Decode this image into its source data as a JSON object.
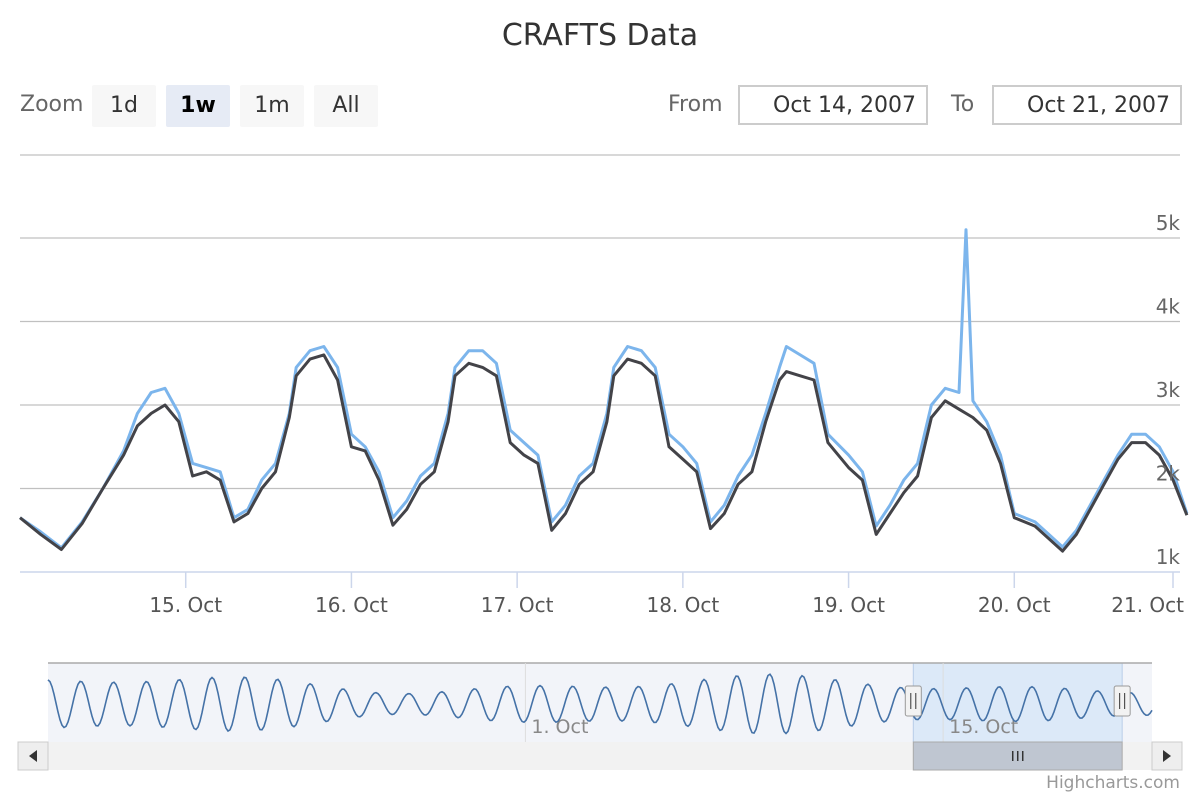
{
  "title": "CRAFTS Data",
  "range_selector": {
    "zoom_label": "Zoom",
    "buttons": [
      {
        "label": "1d",
        "active": false
      },
      {
        "label": "1w",
        "active": true
      },
      {
        "label": "1m",
        "active": false
      },
      {
        "label": "All",
        "active": false
      }
    ],
    "from_label": "From",
    "from_value": "Oct 14, 2007",
    "to_label": "To",
    "to_value": "Oct 21, 2007"
  },
  "credits": "Highcharts.com",
  "colors": {
    "series_light": "#7cb5ec",
    "series_dark": "#434348",
    "navigator_line": "#4572a7",
    "navigator_mask": "#dce9f8",
    "grid": "#c0c0c0"
  },
  "chart_data": {
    "type": "line",
    "xlim": [
      "2007-10-14",
      "2007-10-21"
    ],
    "ylim": [
      1000,
      5000
    ],
    "y_ticks": [
      {
        "value": 1000,
        "label": "1k"
      },
      {
        "value": 2000,
        "label": "2k"
      },
      {
        "value": 3000,
        "label": "3k"
      },
      {
        "value": 4000,
        "label": "4k"
      },
      {
        "value": 5000,
        "label": "5k"
      }
    ],
    "x_ticks": [
      {
        "value": "2007-10-15",
        "label": "15. Oct"
      },
      {
        "value": "2007-10-16",
        "label": "16. Oct"
      },
      {
        "value": "2007-10-17",
        "label": "17. Oct"
      },
      {
        "value": "2007-10-18",
        "label": "18. Oct"
      },
      {
        "value": "2007-10-19",
        "label": "19. Oct"
      },
      {
        "value": "2007-10-20",
        "label": "20. Oct"
      },
      {
        "value": "2007-10-21",
        "label": "21. Oct"
      }
    ],
    "grid": true,
    "series": [
      {
        "color": "#7cb5ec",
        "points": [
          [
            "2007-10-14 00:00",
            1650
          ],
          [
            "2007-10-14 03:00",
            1480
          ],
          [
            "2007-10-14 06:00",
            1290
          ],
          [
            "2007-10-14 09:00",
            1600
          ],
          [
            "2007-10-14 12:00",
            2000
          ],
          [
            "2007-10-14 15:00",
            2450
          ],
          [
            "2007-10-14 17:00",
            2900
          ],
          [
            "2007-10-14 19:00",
            3150
          ],
          [
            "2007-10-14 21:00",
            3200
          ],
          [
            "2007-10-14 23:00",
            2900
          ],
          [
            "2007-10-15 01:00",
            2300
          ],
          [
            "2007-10-15 03:00",
            2250
          ],
          [
            "2007-10-15 05:00",
            2200
          ],
          [
            "2007-10-15 07:00",
            1650
          ],
          [
            "2007-10-15 09:00",
            1750
          ],
          [
            "2007-10-15 11:00",
            2100
          ],
          [
            "2007-10-15 13:00",
            2300
          ],
          [
            "2007-10-15 15:00",
            2900
          ],
          [
            "2007-10-15 16:00",
            3450
          ],
          [
            "2007-10-15 18:00",
            3650
          ],
          [
            "2007-10-15 20:00",
            3700
          ],
          [
            "2007-10-15 22:00",
            3450
          ],
          [
            "2007-10-16 00:00",
            2650
          ],
          [
            "2007-10-16 02:00",
            2500
          ],
          [
            "2007-10-16 04:00",
            2200
          ],
          [
            "2007-10-16 06:00",
            1650
          ],
          [
            "2007-10-16 08:00",
            1850
          ],
          [
            "2007-10-16 10:00",
            2150
          ],
          [
            "2007-10-16 12:00",
            2300
          ],
          [
            "2007-10-16 14:00",
            2900
          ],
          [
            "2007-10-16 15:00",
            3450
          ],
          [
            "2007-10-16 17:00",
            3650
          ],
          [
            "2007-10-16 19:00",
            3650
          ],
          [
            "2007-10-16 21:00",
            3500
          ],
          [
            "2007-10-16 23:00",
            2700
          ],
          [
            "2007-10-17 01:00",
            2550
          ],
          [
            "2007-10-17 03:00",
            2400
          ],
          [
            "2007-10-17 05:00",
            1600
          ],
          [
            "2007-10-17 07:00",
            1800
          ],
          [
            "2007-10-17 09:00",
            2150
          ],
          [
            "2007-10-17 11:00",
            2300
          ],
          [
            "2007-10-17 13:00",
            2900
          ],
          [
            "2007-10-17 14:00",
            3450
          ],
          [
            "2007-10-17 16:00",
            3700
          ],
          [
            "2007-10-17 18:00",
            3650
          ],
          [
            "2007-10-17 20:00",
            3450
          ],
          [
            "2007-10-17 22:00",
            2650
          ],
          [
            "2007-10-18 00:00",
            2500
          ],
          [
            "2007-10-18 02:00",
            2300
          ],
          [
            "2007-10-18 04:00",
            1600
          ],
          [
            "2007-10-18 06:00",
            1800
          ],
          [
            "2007-10-18 08:00",
            2150
          ],
          [
            "2007-10-18 10:00",
            2400
          ],
          [
            "2007-10-18 12:00",
            2900
          ],
          [
            "2007-10-18 14:00",
            3450
          ],
          [
            "2007-10-18 15:00",
            3700
          ],
          [
            "2007-10-18 17:00",
            3600
          ],
          [
            "2007-10-18 19:00",
            3500
          ],
          [
            "2007-10-18 21:00",
            2650
          ],
          [
            "2007-10-19 00:00",
            2400
          ],
          [
            "2007-10-19 02:00",
            2200
          ],
          [
            "2007-10-19 04:00",
            1550
          ],
          [
            "2007-10-19 06:00",
            1800
          ],
          [
            "2007-10-19 08:00",
            2100
          ],
          [
            "2007-10-19 10:00",
            2300
          ],
          [
            "2007-10-19 12:00",
            3000
          ],
          [
            "2007-10-19 14:00",
            3200
          ],
          [
            "2007-10-19 16:00",
            3150
          ],
          [
            "2007-10-19 17:00",
            5100
          ],
          [
            "2007-10-19 18:00",
            3050
          ],
          [
            "2007-10-19 20:00",
            2800
          ],
          [
            "2007-10-19 22:00",
            2400
          ],
          [
            "2007-10-20 00:00",
            1700
          ],
          [
            "2007-10-20 03:00",
            1600
          ],
          [
            "2007-10-20 05:00",
            1450
          ],
          [
            "2007-10-20 07:00",
            1300
          ],
          [
            "2007-10-20 09:00",
            1500
          ],
          [
            "2007-10-20 11:00",
            1800
          ],
          [
            "2007-10-20 13:00",
            2100
          ],
          [
            "2007-10-20 15:00",
            2400
          ],
          [
            "2007-10-20 17:00",
            2650
          ],
          [
            "2007-10-20 19:00",
            2650
          ],
          [
            "2007-10-20 21:00",
            2500
          ],
          [
            "2007-10-20 23:00",
            2200
          ],
          [
            "2007-10-21 01:00",
            1700
          ]
        ]
      },
      {
        "color": "#434348",
        "points": [
          [
            "2007-10-14 00:00",
            1650
          ],
          [
            "2007-10-14 03:00",
            1450
          ],
          [
            "2007-10-14 06:00",
            1270
          ],
          [
            "2007-10-14 09:00",
            1580
          ],
          [
            "2007-10-14 12:00",
            2000
          ],
          [
            "2007-10-14 15:00",
            2400
          ],
          [
            "2007-10-14 17:00",
            2750
          ],
          [
            "2007-10-14 19:00",
            2900
          ],
          [
            "2007-10-14 21:00",
            3000
          ],
          [
            "2007-10-14 23:00",
            2800
          ],
          [
            "2007-10-15 01:00",
            2150
          ],
          [
            "2007-10-15 03:00",
            2200
          ],
          [
            "2007-10-15 05:00",
            2100
          ],
          [
            "2007-10-15 07:00",
            1600
          ],
          [
            "2007-10-15 09:00",
            1700
          ],
          [
            "2007-10-15 11:00",
            2000
          ],
          [
            "2007-10-15 13:00",
            2200
          ],
          [
            "2007-10-15 15:00",
            2850
          ],
          [
            "2007-10-15 16:00",
            3350
          ],
          [
            "2007-10-15 18:00",
            3550
          ],
          [
            "2007-10-15 20:00",
            3600
          ],
          [
            "2007-10-15 22:00",
            3300
          ],
          [
            "2007-10-16 00:00",
            2500
          ],
          [
            "2007-10-16 02:00",
            2450
          ],
          [
            "2007-10-16 04:00",
            2100
          ],
          [
            "2007-10-16 06:00",
            1560
          ],
          [
            "2007-10-16 08:00",
            1750
          ],
          [
            "2007-10-16 10:00",
            2050
          ],
          [
            "2007-10-16 12:00",
            2200
          ],
          [
            "2007-10-16 14:00",
            2800
          ],
          [
            "2007-10-16 15:00",
            3350
          ],
          [
            "2007-10-16 17:00",
            3500
          ],
          [
            "2007-10-16 19:00",
            3450
          ],
          [
            "2007-10-16 21:00",
            3350
          ],
          [
            "2007-10-16 23:00",
            2550
          ],
          [
            "2007-10-17 01:00",
            2400
          ],
          [
            "2007-10-17 03:00",
            2300
          ],
          [
            "2007-10-17 05:00",
            1500
          ],
          [
            "2007-10-17 07:00",
            1700
          ],
          [
            "2007-10-17 09:00",
            2050
          ],
          [
            "2007-10-17 11:00",
            2200
          ],
          [
            "2007-10-17 13:00",
            2800
          ],
          [
            "2007-10-17 14:00",
            3350
          ],
          [
            "2007-10-17 16:00",
            3550
          ],
          [
            "2007-10-17 18:00",
            3500
          ],
          [
            "2007-10-17 20:00",
            3350
          ],
          [
            "2007-10-17 22:00",
            2500
          ],
          [
            "2007-10-18 00:00",
            2350
          ],
          [
            "2007-10-18 02:00",
            2200
          ],
          [
            "2007-10-18 04:00",
            1520
          ],
          [
            "2007-10-18 06:00",
            1700
          ],
          [
            "2007-10-18 08:00",
            2050
          ],
          [
            "2007-10-18 10:00",
            2200
          ],
          [
            "2007-10-18 12:00",
            2800
          ],
          [
            "2007-10-18 14:00",
            3300
          ],
          [
            "2007-10-18 15:00",
            3400
          ],
          [
            "2007-10-18 17:00",
            3350
          ],
          [
            "2007-10-18 19:00",
            3300
          ],
          [
            "2007-10-18 21:00",
            2550
          ],
          [
            "2007-10-19 00:00",
            2250
          ],
          [
            "2007-10-19 02:00",
            2100
          ],
          [
            "2007-10-19 04:00",
            1450
          ],
          [
            "2007-10-19 06:00",
            1700
          ],
          [
            "2007-10-19 08:00",
            1950
          ],
          [
            "2007-10-19 10:00",
            2150
          ],
          [
            "2007-10-19 12:00",
            2850
          ],
          [
            "2007-10-19 14:00",
            3050
          ],
          [
            "2007-10-19 16:00",
            2950
          ],
          [
            "2007-10-19 17:00",
            2900
          ],
          [
            "2007-10-19 18:00",
            2850
          ],
          [
            "2007-10-19 20:00",
            2700
          ],
          [
            "2007-10-19 22:00",
            2300
          ],
          [
            "2007-10-20 00:00",
            1650
          ],
          [
            "2007-10-20 03:00",
            1550
          ],
          [
            "2007-10-20 05:00",
            1400
          ],
          [
            "2007-10-20 07:00",
            1250
          ],
          [
            "2007-10-20 09:00",
            1450
          ],
          [
            "2007-10-20 11:00",
            1750
          ],
          [
            "2007-10-20 13:00",
            2050
          ],
          [
            "2007-10-20 15:00",
            2350
          ],
          [
            "2007-10-20 17:00",
            2550
          ],
          [
            "2007-10-20 19:00",
            2550
          ],
          [
            "2007-10-20 21:00",
            2400
          ],
          [
            "2007-10-20 23:00",
            2100
          ],
          [
            "2007-10-21 01:00",
            1680
          ]
        ]
      }
    ]
  },
  "navigator": {
    "x_ticks": [
      {
        "value": "2007-10-01",
        "label": "1. Oct"
      },
      {
        "value": "2007-10-15",
        "label": "15. Oct"
      }
    ],
    "scrollbar_grip": "III",
    "handle_grip": "||"
  }
}
